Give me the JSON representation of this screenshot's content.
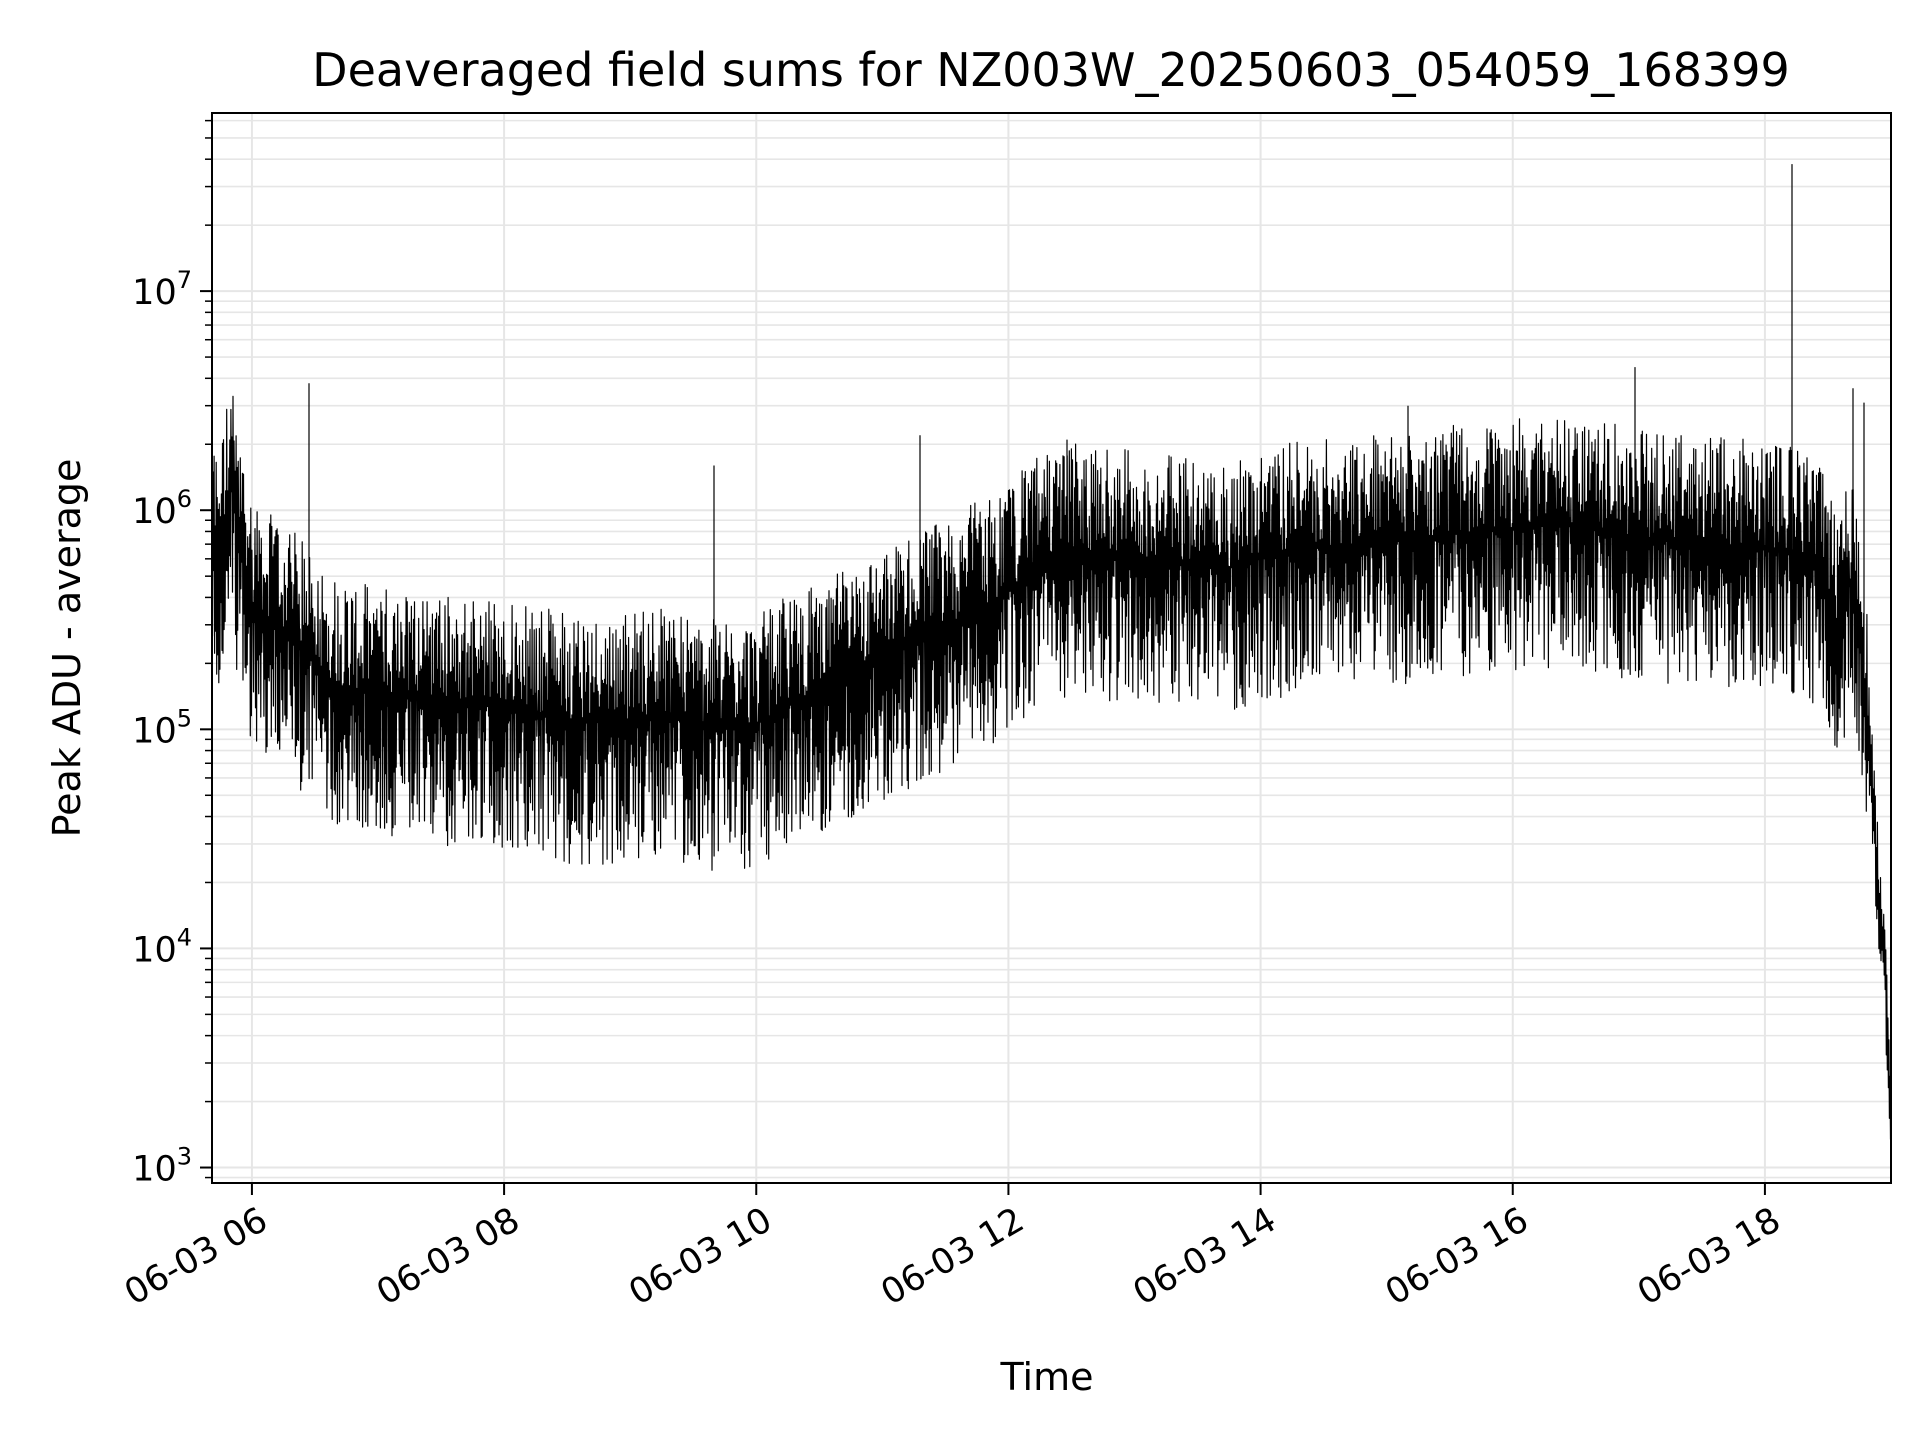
{
  "chart_data": {
    "type": "line",
    "title": "Deaveraged field sums for NZ003W_20250603_054059_168399",
    "xlabel": "Time",
    "ylabel": "Peak ADU - average",
    "yscale": "log",
    "ylim": [
      850,
      65000000
    ],
    "xlim": [
      "2025-06-03 05:41",
      "2025-06-03 19:00"
    ],
    "grid": true,
    "line_color": "#000000",
    "grid_color": "#e6e6e6",
    "x_ticks": [
      {
        "value": "2025-06-03 06:00",
        "label": "06-03 06"
      },
      {
        "value": "2025-06-03 08:00",
        "label": "06-03 08"
      },
      {
        "value": "2025-06-03 10:00",
        "label": "06-03 10"
      },
      {
        "value": "2025-06-03 12:00",
        "label": "06-03 12"
      },
      {
        "value": "2025-06-03 14:00",
        "label": "06-03 14"
      },
      {
        "value": "2025-06-03 16:00",
        "label": "06-03 16"
      },
      {
        "value": "2025-06-03 18:00",
        "label": "06-03 18"
      }
    ],
    "y_ticks": [
      {
        "value": 1000,
        "base": "10",
        "exp": "3"
      },
      {
        "value": 10000,
        "base": "10",
        "exp": "4"
      },
      {
        "value": 100000,
        "base": "10",
        "exp": "5"
      },
      {
        "value": 1000000,
        "base": "10",
        "exp": "6"
      },
      {
        "value": 10000000,
        "base": "10",
        "exp": "7"
      }
    ],
    "series": [
      {
        "points": [
          [
            "2025-06-03 05:41",
            700000
          ],
          [
            "2025-06-03 05:45",
            650000
          ],
          [
            "2025-06-03 05:50",
            1300000
          ],
          [
            "2025-06-03 05:55",
            600000
          ],
          [
            "2025-06-03 06:00",
            380000
          ],
          [
            "2025-06-03 06:10",
            300000
          ],
          [
            "2025-06-03 06:20",
            260000
          ],
          [
            "2025-06-03 06:30",
            200000
          ],
          [
            "2025-06-03 06:40",
            160000
          ],
          [
            "2025-06-03 06:50",
            150000
          ],
          [
            "2025-06-03 07:00",
            145000
          ],
          [
            "2025-06-03 07:15",
            140000
          ],
          [
            "2025-06-03 07:30",
            135000
          ],
          [
            "2025-06-03 07:45",
            130000
          ],
          [
            "2025-06-03 08:00",
            125000
          ],
          [
            "2025-06-03 08:15",
            118000
          ],
          [
            "2025-06-03 08:30",
            112000
          ],
          [
            "2025-06-03 08:45",
            108000
          ],
          [
            "2025-06-03 09:00",
            110000
          ],
          [
            "2025-06-03 09:15",
            120000
          ],
          [
            "2025-06-03 09:30",
            105000
          ],
          [
            "2025-06-03 09:45",
            100000
          ],
          [
            "2025-06-03 10:00",
            105000
          ],
          [
            "2025-06-03 10:15",
            130000
          ],
          [
            "2025-06-03 10:30",
            150000
          ],
          [
            "2025-06-03 10:45",
            180000
          ],
          [
            "2025-06-03 11:00",
            210000
          ],
          [
            "2025-06-03 11:15",
            250000
          ],
          [
            "2025-06-03 11:30",
            300000
          ],
          [
            "2025-06-03 11:45",
            350000
          ],
          [
            "2025-06-03 12:00",
            420000
          ],
          [
            "2025-06-03 12:15",
            600000
          ],
          [
            "2025-06-03 12:30",
            650000
          ],
          [
            "2025-06-03 12:45",
            620000
          ],
          [
            "2025-06-03 13:00",
            600000
          ],
          [
            "2025-06-03 13:15",
            580000
          ],
          [
            "2025-06-03 13:30",
            560000
          ],
          [
            "2025-06-03 13:45",
            550000
          ],
          [
            "2025-06-03 14:00",
            600000
          ],
          [
            "2025-06-03 14:15",
            650000
          ],
          [
            "2025-06-03 14:30",
            680000
          ],
          [
            "2025-06-03 14:45",
            700000
          ],
          [
            "2025-06-03 15:00",
            720000
          ],
          [
            "2025-06-03 15:15",
            750000
          ],
          [
            "2025-06-03 15:30",
            780000
          ],
          [
            "2025-06-03 15:45",
            800000
          ],
          [
            "2025-06-03 16:00",
            830000
          ],
          [
            "2025-06-03 16:15",
            860000
          ],
          [
            "2025-06-03 16:30",
            850000
          ],
          [
            "2025-06-03 16:45",
            800000
          ],
          [
            "2025-06-03 17:00",
            760000
          ],
          [
            "2025-06-03 17:15",
            720000
          ],
          [
            "2025-06-03 17:30",
            700000
          ],
          [
            "2025-06-03 17:45",
            690000
          ],
          [
            "2025-06-03 18:00",
            680000
          ],
          [
            "2025-06-03 18:10",
            650000
          ],
          [
            "2025-06-03 18:20",
            600000
          ],
          [
            "2025-06-03 18:30",
            450000
          ],
          [
            "2025-06-03 18:35",
            250000
          ],
          [
            "2025-06-03 18:40",
            500000
          ],
          [
            "2025-06-03 18:45",
            300000
          ],
          [
            "2025-06-03 18:50",
            80000
          ],
          [
            "2025-06-03 18:54",
            20000
          ],
          [
            "2025-06-03 18:57",
            8000
          ],
          [
            "2025-06-03 19:00",
            1500
          ]
        ],
        "spikes": [
          [
            "2025-06-03 06:27",
            3800000
          ],
          [
            "2025-06-03 09:40",
            1600000
          ],
          [
            "2025-06-03 11:18",
            2200000
          ],
          [
            "2025-06-03 12:28",
            2100000
          ],
          [
            "2025-06-03 15:10",
            3000000
          ],
          [
            "2025-06-03 16:58",
            4500000
          ],
          [
            "2025-06-03 18:13",
            38000000
          ],
          [
            "2025-06-03 18:13",
            27000000
          ],
          [
            "2025-06-03 18:42",
            3600000
          ],
          [
            "2025-06-03 18:47",
            3100000
          ]
        ]
      }
    ]
  }
}
